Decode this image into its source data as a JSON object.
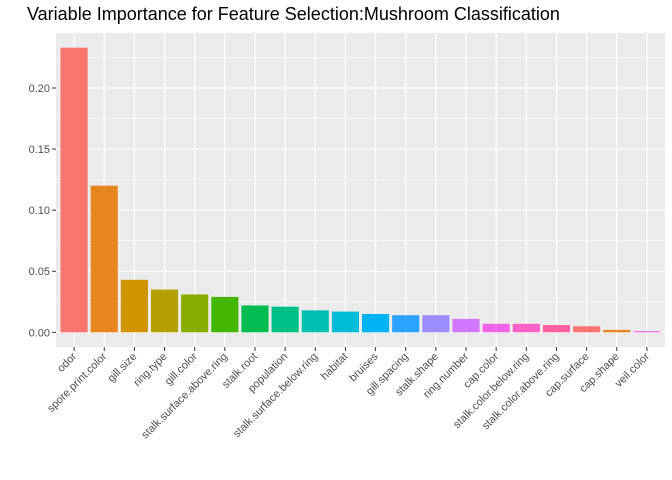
{
  "chart_data": {
    "type": "bar",
    "title": "Variable Importance for Feature Selection:Mushroom Classification",
    "xlabel": "",
    "ylabel": "",
    "categories": [
      "odor",
      "spore.print.color",
      "gill.size",
      "ring.type",
      "gill.color",
      "stalk.surface.above.ring",
      "stalk.root",
      "population",
      "stalk.surface.below.ring",
      "habitat",
      "bruises",
      "gill.spacing",
      "stalk.shape",
      "ring.number",
      "cap.color",
      "stalk.color.below.ring",
      "stalk.color.above.ring",
      "cap.surface",
      "cap.shape",
      "veil.color"
    ],
    "values": [
      0.233,
      0.12,
      0.043,
      0.035,
      0.031,
      0.029,
      0.022,
      0.021,
      0.018,
      0.017,
      0.015,
      0.014,
      0.014,
      0.011,
      0.007,
      0.007,
      0.006,
      0.005,
      0.002,
      0.001
    ],
    "colors": [
      "#F8766D",
      "#E7851E",
      "#D09400",
      "#B2A100",
      "#89AC00",
      "#45B500",
      "#00BC51",
      "#00C087",
      "#00C0B2",
      "#00BCD6",
      "#00B3F2",
      "#29A3FF",
      "#9C8DFF",
      "#D277FF",
      "#F166E8",
      "#FF61C7",
      "#FF61A0",
      "#F8766D",
      "#E7851E",
      "#F166E8"
    ],
    "yticks": [
      "0.00",
      "0.05",
      "0.10",
      "0.15",
      "0.20"
    ],
    "ylim": [
      -0.012,
      0.245
    ],
    "grid": true,
    "legend": "none",
    "panel_background": "#EBEBEB",
    "grid_color": "#FFFFFF"
  }
}
